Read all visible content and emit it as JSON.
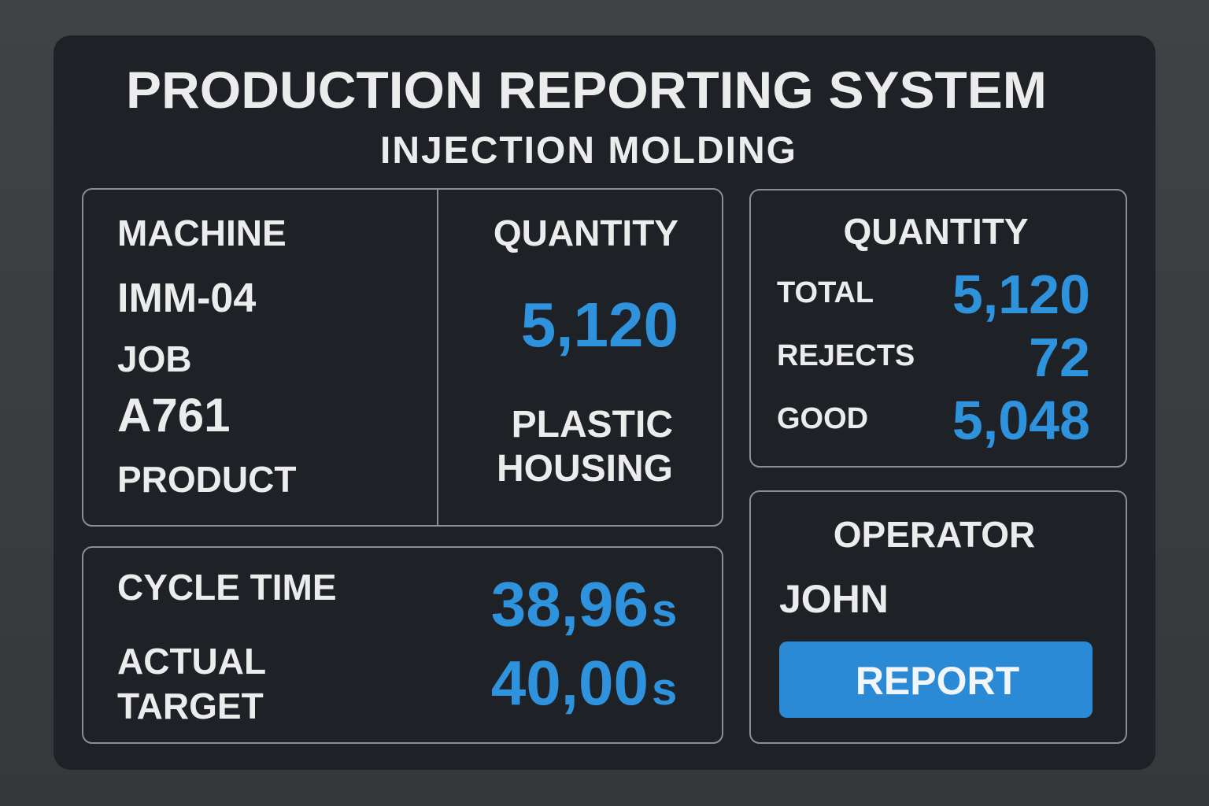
{
  "header": {
    "title": "PRODUCTION REPORTING SYSTEM",
    "subtitle": "INJECTION MOLDING"
  },
  "job_panel": {
    "machine_label": "MACHINE",
    "machine": "IMM-04",
    "job_label": "JOB",
    "job": "A761",
    "product_label": "PRODUCT",
    "quantity_label": "QUANTITY",
    "quantity": "5,120",
    "product": [
      "PLASTIC",
      "HOUSING"
    ]
  },
  "quantity_panel": {
    "title": "QUANTITY",
    "rows": [
      {
        "label": "TOTAL",
        "value": "5,120"
      },
      {
        "label": "REJECTS",
        "value": "72"
      },
      {
        "label": "GOOD",
        "value": "5,048"
      }
    ]
  },
  "cycle_panel": {
    "cycle_label": "CYCLE TIME",
    "actual_label": "ACTUAL",
    "target_label": "TARGET",
    "actual": "38,96",
    "target": "40,00",
    "unit": "s"
  },
  "operator_panel": {
    "title": "OPERATOR",
    "name": "JOHN",
    "button": "REPORT"
  }
}
